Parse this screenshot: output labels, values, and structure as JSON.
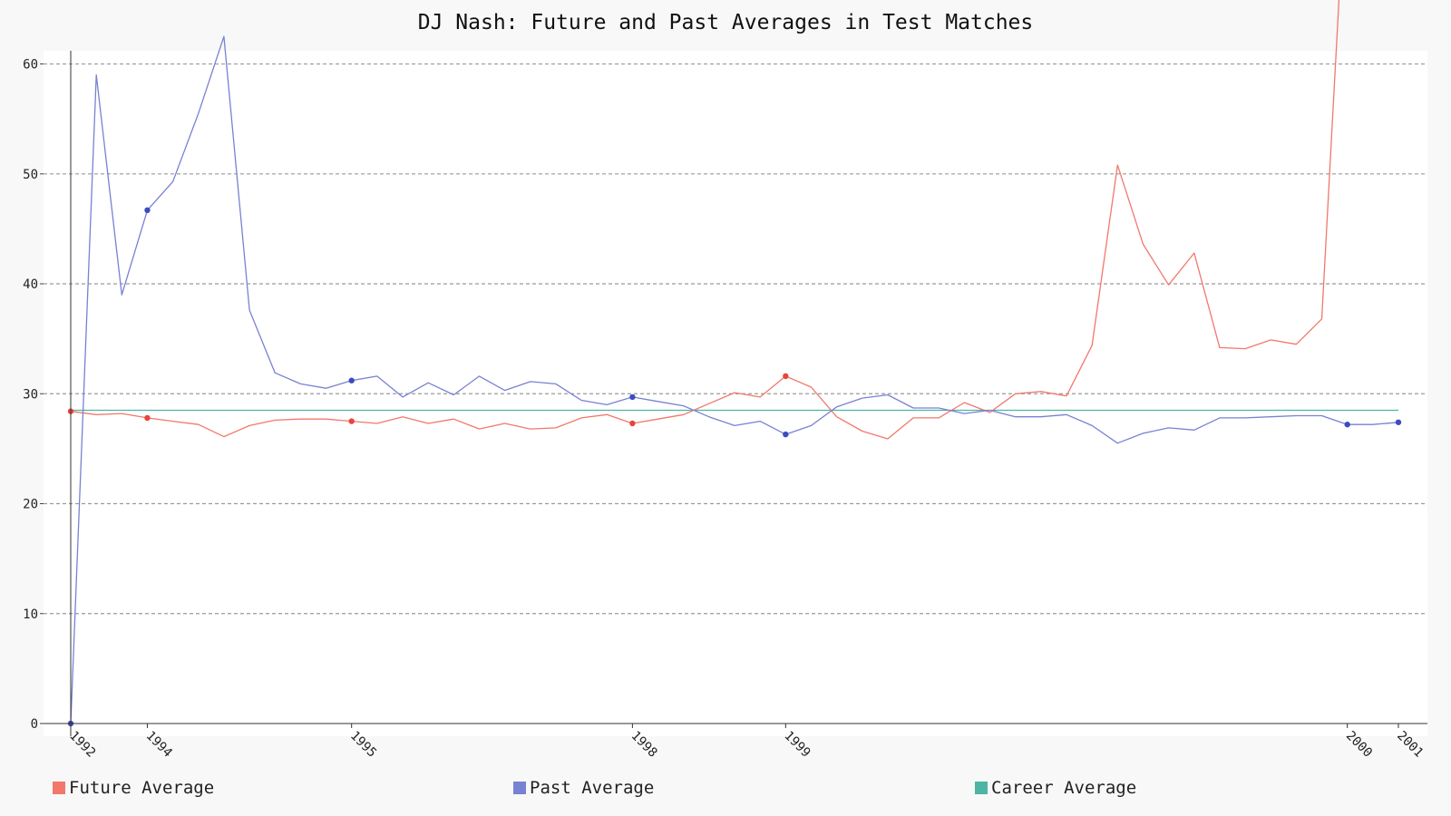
{
  "chart_data": {
    "type": "line",
    "title": "DJ Nash: Future and Past Averages in Test Matches",
    "xlabel": "",
    "ylabel": "",
    "ylim": [
      0,
      61.2
    ],
    "y_ticks": [
      0,
      10,
      20,
      30,
      40,
      50,
      60
    ],
    "grid": "horizontal dashed",
    "legend_position": "bottom",
    "x_tick_labels": [
      {
        "index": 0,
        "label": "1992"
      },
      {
        "index": 3,
        "label": "1994"
      },
      {
        "index": 11,
        "label": "1995"
      },
      {
        "index": 22,
        "label": "1998"
      },
      {
        "index": 28,
        "label": "1999"
      },
      {
        "index": 50,
        "label": "2000"
      },
      {
        "index": 52,
        "label": "2001"
      }
    ],
    "series": [
      {
        "name": "Future Average",
        "color": "#f1786b",
        "marker_color": "#e8453c",
        "marker_indices": [
          0,
          3,
          11,
          22,
          28
        ],
        "values": [
          28.4,
          28.1,
          28.2,
          27.8,
          27.5,
          27.2,
          26.1,
          27.1,
          27.6,
          27.7,
          27.7,
          27.5,
          27.3,
          27.9,
          27.3,
          27.7,
          26.8,
          27.3,
          26.8,
          26.9,
          27.8,
          28.1,
          27.3,
          27.7,
          28.1,
          29.1,
          30.1,
          29.7,
          31.6,
          30.6,
          27.9,
          26.6,
          25.9,
          27.8,
          27.8,
          29.2,
          28.3,
          30.0,
          30.2,
          29.8,
          34.4,
          50.8,
          43.6,
          39.9,
          42.8,
          34.2,
          34.1,
          34.9,
          34.5,
          36.8,
          80.0
        ]
      },
      {
        "name": "Past Average",
        "color": "#7782d2",
        "marker_color": "#3c4bbd",
        "marker_indices": [
          0,
          3,
          11,
          22,
          28,
          50,
          52
        ],
        "values": [
          0,
          59.0,
          39.0,
          46.7,
          49.3,
          55.5,
          62.5,
          37.6,
          31.9,
          30.9,
          30.5,
          31.2,
          31.6,
          29.7,
          31.0,
          29.9,
          31.6,
          30.3,
          31.1,
          30.9,
          29.4,
          29.0,
          29.7,
          29.3,
          28.9,
          27.9,
          27.1,
          27.5,
          26.3,
          27.1,
          28.8,
          29.6,
          29.9,
          28.7,
          28.7,
          28.2,
          28.5,
          27.9,
          27.9,
          28.1,
          27.1,
          25.5,
          26.4,
          26.9,
          26.7,
          27.8,
          27.8,
          27.9,
          28.0,
          28.0,
          27.2,
          27.2,
          27.4
        ]
      },
      {
        "name": "Career Average",
        "color": "#4cb5a3",
        "marker_color": "#4cb5a3",
        "marker_indices": [],
        "values": [
          28.5,
          28.5,
          28.5,
          28.5,
          28.5,
          28.5,
          28.5,
          28.5,
          28.5,
          28.5,
          28.5,
          28.5,
          28.5,
          28.5,
          28.5,
          28.5,
          28.5,
          28.5,
          28.5,
          28.5,
          28.5,
          28.5,
          28.5,
          28.5,
          28.5,
          28.5,
          28.5,
          28.5,
          28.5,
          28.5,
          28.5,
          28.5,
          28.5,
          28.5,
          28.5,
          28.5,
          28.5,
          28.5,
          28.5,
          28.5,
          28.5,
          28.5,
          28.5,
          28.5,
          28.5,
          28.5,
          28.5,
          28.5,
          28.5,
          28.5,
          28.5,
          28.5,
          28.5
        ]
      }
    ]
  }
}
